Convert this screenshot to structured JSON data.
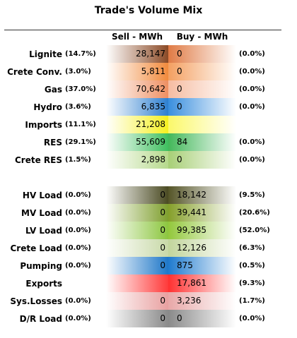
{
  "title": "Trade's Volume Mix",
  "headers": {
    "sell": "Sell - MWh",
    "buy": "Buy - MWh"
  },
  "rows": [
    {
      "label": "Lignite",
      "sell_pct": "(14.7%)",
      "sell": "28,147",
      "buy": "0",
      "buy_pct": "(0.0%)",
      "sell_color": "#8b4a26",
      "buy_color": "#e07b45"
    },
    {
      "label": "Crete Conv.",
      "sell_pct": "(3.0%)",
      "sell": "5,811",
      "buy": "0",
      "buy_pct": "(0.0%)",
      "sell_color": "#f18a3c",
      "buy_color": "#f4a061"
    },
    {
      "label": "Gas",
      "sell_pct": "(37.0%)",
      "sell": "70,642",
      "buy": "0",
      "buy_pct": "(0.0%)",
      "sell_color": "#ee8f62",
      "buy_color": "#f6bca1"
    },
    {
      "label": "Hydro",
      "sell_pct": "(3.6%)",
      "sell": "6,835",
      "buy": "0",
      "buy_pct": "(0.0%)",
      "sell_color": "#2d7fd0",
      "buy_color": "#3a8fde"
    },
    {
      "label": "Imports",
      "sell_pct": "(11.1%)",
      "sell": "21,208",
      "buy": "",
      "buy_pct": "",
      "sell_color": "#f5f020",
      "buy_color": "#fbf86a"
    },
    {
      "label": "RES",
      "sell_pct": "(29.1%)",
      "sell": "55,609",
      "buy": "84",
      "buy_pct": "(0.0%)",
      "sell_color": "#3fbf5f",
      "buy_color": "#43b85a"
    },
    {
      "label": "Crete RES",
      "sell_pct": "(1.5%)",
      "sell": "2,898",
      "buy": "0",
      "buy_pct": "(0.0%)",
      "sell_color": "#b6d98c",
      "buy_color": "#a7cf76"
    },
    {
      "label": "HV Load",
      "sell_pct": "(0.0%)",
      "sell": "0",
      "buy": "18,142",
      "buy_pct": "(9.5%)",
      "sell_color": "#4a4a22",
      "buy_color": "#555528"
    },
    {
      "label": "MV Load",
      "sell_pct": "(0.0%)",
      "sell": "0",
      "buy": "39,441",
      "buy_pct": "(20.6%)",
      "sell_color": "#7f9f2e",
      "buy_color": "#859f2a"
    },
    {
      "label": "LV Load",
      "sell_pct": "(0.0%)",
      "sell": "0",
      "buy": "99,385",
      "buy_pct": "(52.0%)",
      "sell_color": "#8cc63f",
      "buy_color": "#93c83c"
    },
    {
      "label": "Crete Load",
      "sell_pct": "(0.0%)",
      "sell": "0",
      "buy": "12,126",
      "buy_pct": "(6.3%)",
      "sell_color": "#c8d9a8",
      "buy_color": "#c2d59c"
    },
    {
      "label": "Pumping",
      "sell_pct": "(0.0%)",
      "sell": "0",
      "buy": "875",
      "buy_pct": "(0.5%)",
      "sell_color": "#1e77c8",
      "buy_color": "#1f7bcf"
    },
    {
      "label": "Exports",
      "sell_pct": "",
      "sell": "",
      "buy": "17,861",
      "buy_pct": "(9.3%)",
      "sell_color": "#ff3a3a",
      "buy_color": "#ff3030"
    },
    {
      "label": "Sys.Losses",
      "sell_pct": "(0.0%)",
      "sell": "0",
      "buy": "3,236",
      "buy_pct": "(1.7%)",
      "sell_color": "#e8a0a0",
      "buy_color": "#e8a8a8"
    },
    {
      "label": "D/R Load",
      "sell_pct": "(0.0%)",
      "sell": "0",
      "buy": "0",
      "buy_pct": "(0.0%)",
      "sell_color": "#8a8a8a",
      "buy_color": "#8a8a8a"
    }
  ]
}
